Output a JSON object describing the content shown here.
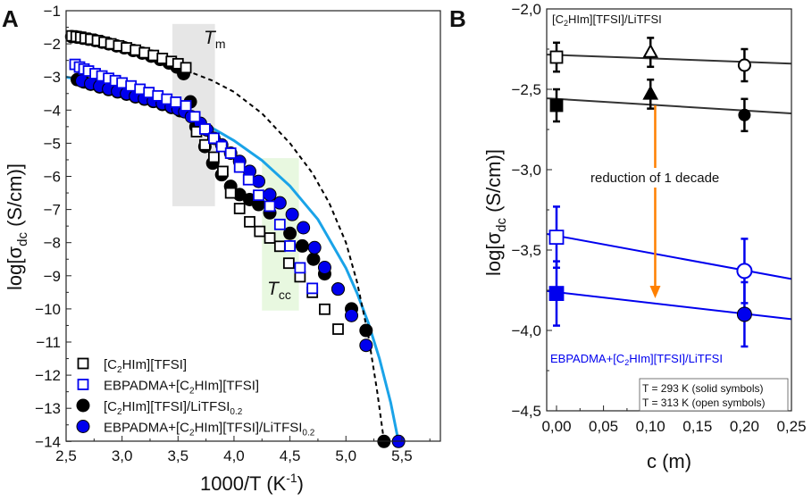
{
  "chart_data": [
    {
      "panel": "A",
      "type": "scatter",
      "xlabel": {
        "main": "1000/T (K",
        "sup": "-1",
        "end": ")"
      },
      "ylabel": {
        "pre": "log[σ",
        "sub": "dc",
        "post": " (S/cm)]"
      },
      "xlim": [
        2.5,
        5.84
      ],
      "ylim": [
        -14,
        -1
      ],
      "xticks": [
        "2,5",
        "3,0",
        "3,5",
        "4,0",
        "4,5",
        "5,0",
        "5,5"
      ],
      "xtick_values": [
        2.5,
        3.0,
        3.5,
        4.0,
        4.5,
        5.0,
        5.5
      ],
      "yticks": [
        "−1",
        "−2",
        "−3",
        "−4",
        "−5",
        "−6",
        "−7",
        "−8",
        "−9",
        "−10",
        "−11",
        "−12",
        "−13",
        "−14"
      ],
      "ytick_values": [
        -1,
        -2,
        -3,
        -4,
        -5,
        -6,
        -7,
        -8,
        -9,
        -10,
        -11,
        -12,
        -13,
        -14
      ],
      "grid": false,
      "legend_position": "bottom-left",
      "annotations": [
        {
          "text": "T",
          "sub": "m",
          "color": "#888888",
          "band_color": "#e6e6e6",
          "x_range": [
            3.45,
            3.83
          ],
          "y_range": [
            -6.9,
            -1.4
          ]
        },
        {
          "text": "T",
          "sub": "cc",
          "color": "#1a8a1a",
          "band_color": "#e8f8e0",
          "x_range": [
            4.25,
            4.58
          ],
          "y_range": [
            -10.05,
            -5.45
          ]
        }
      ],
      "series": [
        {
          "name": "[C2HIm][TFSI]",
          "label": {
            "a": "[C",
            "sub": "2",
            "b": "HIm][TFSI]"
          },
          "marker": "square",
          "filled": false,
          "color": "#000000",
          "x": [
            2.55,
            2.59,
            2.63,
            2.67,
            2.72,
            2.78,
            2.84,
            2.9,
            2.97,
            3.04,
            3.12,
            3.2,
            3.28,
            3.36,
            3.44,
            3.5,
            3.57,
            3.665,
            3.74,
            3.82,
            3.9,
            3.97,
            4.05,
            4.14,
            4.23,
            4.32,
            4.41,
            4.49,
            4.59,
            4.7,
            4.81,
            4.93
          ],
          "y": [
            -1.76,
            -1.78,
            -1.8,
            -1.83,
            -1.86,
            -1.9,
            -1.95,
            -2.0,
            -2.06,
            -2.12,
            -2.19,
            -2.27,
            -2.35,
            -2.44,
            -2.53,
            -2.6,
            -2.72,
            -4.65,
            -5.05,
            -5.42,
            -5.85,
            -6.5,
            -6.97,
            -7.37,
            -7.66,
            -7.86,
            -8.11,
            -8.62,
            -9.03,
            -9.5,
            -10.01,
            -10.61
          ]
        },
        {
          "name": "EBPADMA+[C2HIm][TFSI]",
          "label": {
            "a": "EBPADMA+[C",
            "sub": "2",
            "b": "HIm][TFSI]"
          },
          "marker": "square",
          "filled": false,
          "color": "#0000ee",
          "x": [
            2.58,
            2.62,
            2.66,
            2.7,
            2.76,
            2.82,
            2.88,
            2.94,
            3.0,
            3.08,
            3.16,
            3.24,
            3.32,
            3.4,
            3.48,
            3.57,
            3.65,
            3.74,
            3.82,
            3.89,
            3.97,
            4.05,
            4.13,
            4.22,
            4.32,
            4.41,
            4.5,
            4.59,
            4.7
          ],
          "y": [
            -2.62,
            -2.7,
            -2.76,
            -2.82,
            -2.9,
            -2.97,
            -3.04,
            -3.11,
            -3.18,
            -3.27,
            -3.37,
            -3.47,
            -3.57,
            -3.67,
            -3.76,
            -3.87,
            -4.2,
            -4.57,
            -4.85,
            -5.1,
            -5.3,
            -5.72,
            -6.1,
            -6.57,
            -6.9,
            -7.45,
            -8.1,
            -8.76,
            -9.38
          ]
        },
        {
          "name": "[C2HIm][TFSI]/LiTFSI0.2",
          "label": {
            "a": "[C",
            "sub": "2",
            "b": "HIm][TFSI]/LiTFSI",
            "sub2": "0.2"
          },
          "marker": "circle",
          "filled": true,
          "color": "#000000",
          "x": [
            2.55,
            2.6,
            2.65,
            2.7,
            2.76,
            2.82,
            2.88,
            2.95,
            3.02,
            3.1,
            3.18,
            3.26,
            3.34,
            3.42,
            3.49,
            3.55,
            2.6,
            2.66,
            2.72,
            2.8,
            2.88,
            2.96,
            3.04,
            3.12,
            3.2,
            3.28,
            3.36,
            3.44,
            3.52,
            3.61,
            3.66,
            3.74,
            3.81,
            3.89,
            3.97,
            4.05,
            4.14,
            4.22,
            4.32,
            4.5,
            4.61,
            4.71,
            4.81,
            4.93,
            5.05,
            5.18,
            5.34
          ],
          "y": [
            -1.78,
            -1.8,
            -1.83,
            -1.86,
            -1.9,
            -1.95,
            -2.0,
            -2.06,
            -2.12,
            -2.2,
            -2.28,
            -2.37,
            -2.47,
            -2.58,
            -2.7,
            -2.9,
            -3.08,
            -3.15,
            -3.22,
            -3.3,
            -3.38,
            -3.45,
            -3.52,
            -3.6,
            -3.67,
            -3.74,
            -3.83,
            -3.92,
            -4.02,
            -3.75,
            -4.5,
            -5.1,
            -5.6,
            -5.95,
            -6.3,
            -6.55,
            -6.7,
            -6.85,
            -7.1,
            -7.72,
            -8.1,
            -8.5,
            -8.94,
            -9.4,
            -10.0,
            -10.65,
            -14.0
          ]
        },
        {
          "name": "EBPADMA+[C2HIm][TFSI]/LiTFSI0.2",
          "label": {
            "a": "EBPADMA+[C",
            "sub": "2",
            "b": "HIm][TFSI]/LiTFSI",
            "sub2": "0.2"
          },
          "marker": "circle",
          "filled": true,
          "color": "#0000ee",
          "x": [
            2.64,
            2.72,
            2.8,
            2.88,
            2.96,
            3.04,
            3.12,
            3.2,
            3.28,
            3.36,
            3.44,
            3.5,
            3.56,
            3.62,
            3.7,
            3.76,
            3.82,
            3.89,
            3.97,
            4.05,
            4.14,
            4.22,
            4.32,
            4.41,
            4.52,
            4.62,
            4.72,
            4.81,
            4.93,
            5.05,
            5.18,
            5.47
          ],
          "y": [
            -3.12,
            -3.2,
            -3.28,
            -3.36,
            -3.43,
            -3.5,
            -3.58,
            -3.65,
            -3.72,
            -3.8,
            -3.9,
            -3.97,
            -4.05,
            -4.2,
            -4.4,
            -4.6,
            -4.85,
            -5.05,
            -5.3,
            -5.55,
            -5.85,
            -6.15,
            -6.55,
            -6.8,
            -7.15,
            -7.55,
            -8.15,
            -8.75,
            -9.4,
            -10.2,
            -11.1,
            -14.0
          ]
        }
      ],
      "lines": [
        {
          "style": "solid",
          "color": "#1aa3e8",
          "x": [
            2.5,
            2.75,
            3.0,
            3.25,
            3.5,
            3.75,
            4.0,
            4.25,
            4.5,
            4.75,
            5.0,
            5.1,
            5.2,
            5.3,
            5.4,
            5.47
          ],
          "y": [
            -3.0,
            -3.2,
            -3.44,
            -3.71,
            -4.04,
            -4.43,
            -4.92,
            -5.52,
            -6.29,
            -7.3,
            -8.77,
            -9.53,
            -10.42,
            -11.5,
            -12.83,
            -14.0
          ]
        },
        {
          "style": "dashed",
          "color": "#000000",
          "x": [
            3.57,
            3.8,
            4.0,
            4.25,
            4.5,
            4.7,
            4.85,
            5.0,
            5.1,
            5.2,
            5.28,
            5.34
          ],
          "y": [
            -2.8,
            -3.1,
            -3.45,
            -4.1,
            -5.0,
            -5.9,
            -6.8,
            -8.0,
            -9.2,
            -10.8,
            -12.5,
            -14.0
          ]
        }
      ]
    },
    {
      "panel": "B",
      "type": "scatter",
      "xlabel": "c (m)",
      "ylabel": {
        "pre": "log[σ",
        "sub": "dc",
        "post": " (S/cm)]"
      },
      "xlim": [
        -0.01,
        0.25
      ],
      "ylim": [
        -4.5,
        -2.0
      ],
      "xticks": [
        "0,00",
        "0,05",
        "0,10",
        "0,15",
        "0,20",
        "0,25"
      ],
      "xtick_values": [
        0,
        0.05,
        0.1,
        0.15,
        0.2,
        0.25
      ],
      "yticks": [
        "−2,0",
        "−2,5",
        "−3,0",
        "−3,5",
        "−4,0",
        "−4,5"
      ],
      "ytick_values": [
        -2.0,
        -2.5,
        -3.0,
        -3.5,
        -4.0,
        -4.5
      ],
      "grid": false,
      "labels": {
        "top": {
          "a": "[C",
          "sub": "2",
          "b": "HIm][TFSI]/LiTFSI"
        },
        "bottom": {
          "a": "EBPADMA+[C",
          "sub": "2",
          "b": "HIm][TFSI]/LiTFSI"
        },
        "arrow_text": "reduction of 1 decade",
        "legend_lines": [
          "T = 293 K (solid symbols)",
          "T = 313 K (open symbols)"
        ]
      },
      "arrow": {
        "color": "#ff8000",
        "text_color": "#c86414",
        "x": 0.105,
        "y_from": -2.6,
        "y_to": -3.8
      },
      "series": [
        {
          "group": "[C2HIm][TFSI]/LiTFSI",
          "temperature": "313 K",
          "filled": false,
          "color": "#000000",
          "points": [
            {
              "x": 0.0,
              "y": -2.3,
              "err": 0.09,
              "marker": "square"
            },
            {
              "x": 0.1,
              "y": -2.27,
              "err": 0.09,
              "marker": "triangle"
            },
            {
              "x": 0.2,
              "y": -2.35,
              "err": 0.1,
              "marker": "circle"
            }
          ],
          "fit": {
            "x": [
              -0.01,
              0.25
            ],
            "y": [
              -2.284,
              -2.34
            ]
          }
        },
        {
          "group": "[C2HIm][TFSI]/LiTFSI",
          "temperature": "293 K",
          "filled": true,
          "color": "#000000",
          "points": [
            {
              "x": 0.0,
              "y": -2.6,
              "err": 0.1,
              "marker": "square"
            },
            {
              "x": 0.1,
              "y": -2.53,
              "err": 0.09,
              "marker": "triangle"
            },
            {
              "x": 0.2,
              "y": -2.66,
              "err": 0.1,
              "marker": "circle"
            }
          ],
          "fit": {
            "x": [
              -0.01,
              0.25
            ],
            "y": [
              -2.556,
              -2.65
            ]
          }
        },
        {
          "group": "EBPADMA+[C2HIm][TFSI]/LiTFSI",
          "temperature": "313 K",
          "filled": false,
          "color": "#0000ee",
          "points": [
            {
              "x": 0.0,
              "y": -3.42,
              "err": 0.19,
              "marker": "square"
            },
            {
              "x": 0.2,
              "y": -3.63,
              "err": 0.2,
              "marker": "circle"
            }
          ],
          "fit": {
            "x": [
              -0.01,
              0.25
            ],
            "y": [
              -3.4,
              -3.68
            ]
          }
        },
        {
          "group": "EBPADMA+[C2HIm][TFSI]/LiTFSI",
          "temperature": "293 K",
          "filled": true,
          "color": "#0000ee",
          "points": [
            {
              "x": 0.0,
              "y": -3.77,
              "err": 0.2,
              "marker": "square"
            },
            {
              "x": 0.2,
              "y": -3.9,
              "err": 0.2,
              "marker": "circle"
            }
          ],
          "fit": {
            "x": [
              -0.01,
              0.25
            ],
            "y": [
              -3.755,
              -3.93
            ]
          }
        }
      ]
    }
  ],
  "panel_labels": [
    "A",
    "B"
  ]
}
